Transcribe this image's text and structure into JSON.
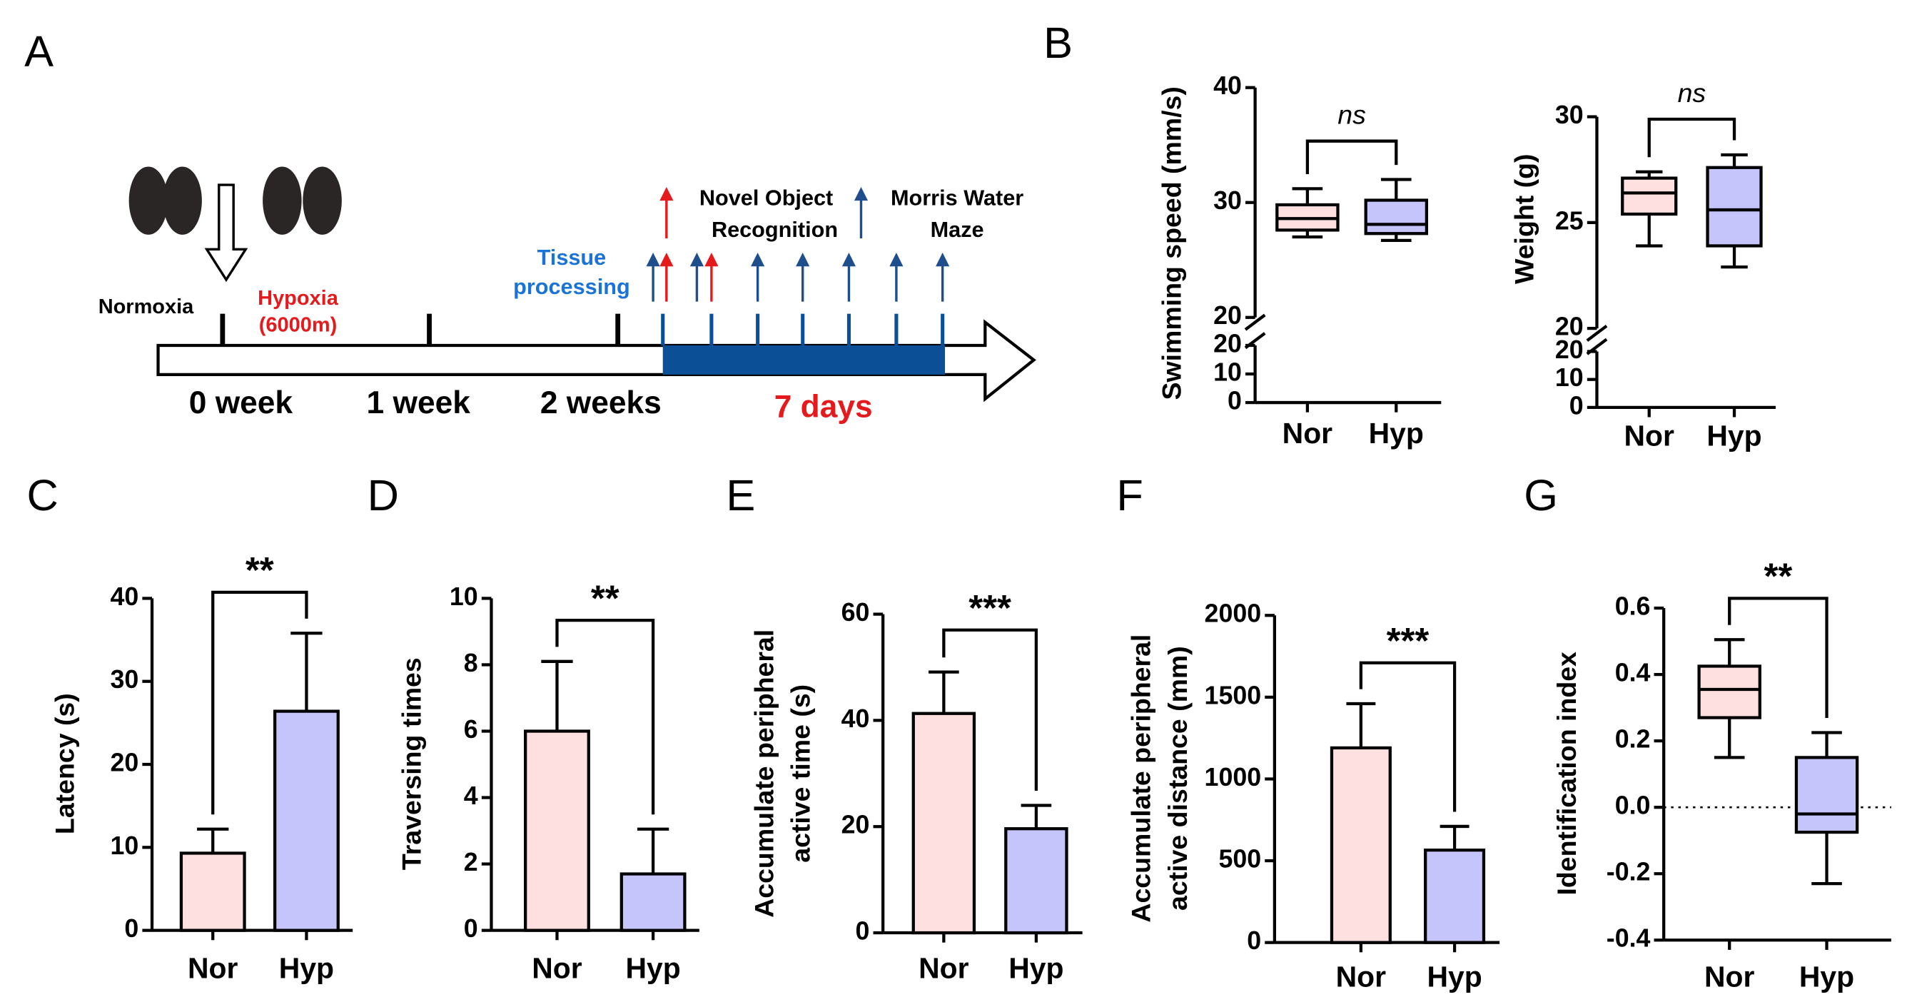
{
  "diagram": {
    "panel": "A",
    "normoxia": "Normoxia",
    "hypoxia": [
      "Hypoxia",
      "(6000m)"
    ],
    "tissue": [
      "Tissue",
      "processing"
    ],
    "nor": [
      "Novel Object",
      "Recognition"
    ],
    "mwm": [
      "Morris Water",
      "Maze"
    ],
    "weeks": [
      "0 week",
      "1 week",
      "2 weeks"
    ],
    "days": "7 days"
  },
  "chart_data": [
    {
      "type": "box",
      "panel": "B",
      "ylabel": [
        "Swimming speed (mm/s)"
      ],
      "categories": [
        "Nor",
        "Hyp"
      ],
      "colors": [
        "#fde0df",
        "#c5c5fb"
      ],
      "boxes": [
        {
          "min": 27,
          "q1": 27.6,
          "median": 28.6,
          "q3": 29.8,
          "max": 31.2
        },
        {
          "min": 26.7,
          "q1": 27.3,
          "median": 28.1,
          "q3": 30.2,
          "max": 32
        }
      ],
      "ylim": [
        20,
        40
      ],
      "yticks": [
        20,
        30,
        40
      ],
      "ylim_lower": [
        0,
        20
      ],
      "yticks_lower": [
        0,
        10,
        20
      ],
      "annotation": "ns"
    },
    {
      "type": "box",
      "ylabel": [
        "Weight (g)"
      ],
      "categories": [
        "Nor",
        "Hyp"
      ],
      "colors": [
        "#fde0df",
        "#c5c5fb"
      ],
      "boxes": [
        {
          "min": 23.9,
          "q1": 25.4,
          "median": 26.4,
          "q3": 27.1,
          "max": 27.4
        },
        {
          "min": 22.9,
          "q1": 23.9,
          "median": 25.6,
          "q3": 27.6,
          "max": 28.2
        }
      ],
      "ylim": [
        20,
        30
      ],
      "yticks": [
        20,
        25,
        30
      ],
      "ylim_lower": [
        0,
        20
      ],
      "yticks_lower": [
        0,
        10,
        20
      ],
      "annotation": "ns"
    },
    {
      "type": "bar",
      "panel": "C",
      "ylabel": [
        "Latency (s)"
      ],
      "categories": [
        "Nor",
        "Hyp"
      ],
      "colors": [
        "#fde0df",
        "#c5c5fb"
      ],
      "values": [
        9.3,
        26.4
      ],
      "errors": [
        2.9,
        9.4
      ],
      "ylim": [
        0,
        40
      ],
      "yticks": [
        0,
        10,
        20,
        30,
        40
      ],
      "annotation": "**"
    },
    {
      "type": "bar",
      "panel": "D",
      "ylabel": [
        "Traversing times"
      ],
      "categories": [
        "Nor",
        "Hyp"
      ],
      "colors": [
        "#fde0df",
        "#c5c5fb"
      ],
      "values": [
        6.0,
        1.7
      ],
      "errors": [
        2.1,
        1.35
      ],
      "ylim": [
        0,
        10
      ],
      "yticks": [
        0,
        2,
        4,
        6,
        8,
        10
      ],
      "annotation": "**"
    },
    {
      "type": "bar",
      "panel": "E",
      "ylabel": [
        "Accumulate peripheral",
        "active time (s)"
      ],
      "categories": [
        "Nor",
        "Hyp"
      ],
      "colors": [
        "#fde0df",
        "#c5c5fb"
      ],
      "values": [
        41.3,
        19.6
      ],
      "errors": [
        7.8,
        4.4
      ],
      "ylim": [
        0,
        60
      ],
      "yticks": [
        0,
        20,
        40,
        60
      ],
      "annotation": "***"
    },
    {
      "type": "bar",
      "panel": "F",
      "ylabel": [
        "Accumulate peripheral",
        "active distance (mm)"
      ],
      "categories": [
        "Nor",
        "Hyp"
      ],
      "colors": [
        "#fde0df",
        "#c5c5fb"
      ],
      "values": [
        1190,
        565
      ],
      "errors": [
        270,
        145
      ],
      "ylim": [
        0,
        2000
      ],
      "yticks": [
        0,
        500,
        1000,
        1500,
        2000
      ],
      "annotation": "***"
    },
    {
      "type": "box",
      "panel": "G",
      "ylabel": [
        "Identification index"
      ],
      "categories": [
        "Nor",
        "Hyp"
      ],
      "colors": [
        "#fde0df",
        "#c5c5fb"
      ],
      "boxes": [
        {
          "min": 0.15,
          "q1": 0.27,
          "median": 0.355,
          "q3": 0.425,
          "max": 0.505
        },
        {
          "min": -0.23,
          "q1": -0.075,
          "median": -0.02,
          "q3": 0.15,
          "max": 0.225
        }
      ],
      "ylim": [
        -0.4,
        0.6
      ],
      "yticks": [
        -0.4,
        -0.2,
        {
          "value": 0,
          "label": "0.0"
        },
        0.2,
        0.4,
        0.6
      ],
      "zero_line": true,
      "annotation": "**"
    }
  ]
}
